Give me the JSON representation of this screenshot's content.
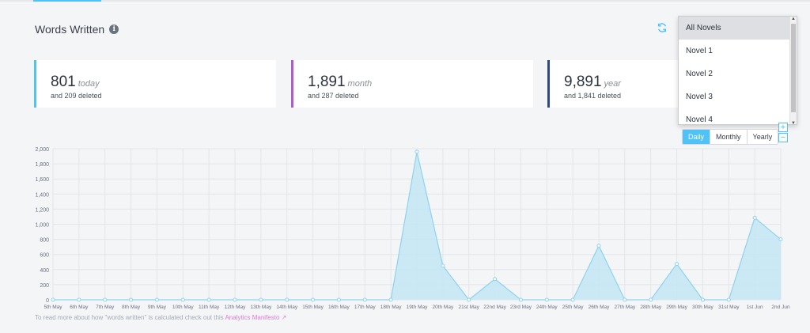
{
  "section": {
    "title": "Words Written",
    "info_icon": "info-icon"
  },
  "toolbar": {
    "refresh_icon": "refresh-icon"
  },
  "stats": [
    {
      "value": "801",
      "unit": "today",
      "deleted": "and 209 deleted",
      "color": "#4fc3f7"
    },
    {
      "value": "1,891",
      "unit": "month",
      "deleted": "and 287 deleted",
      "color": "#b15bc8"
    },
    {
      "value": "9,891",
      "unit": "year",
      "deleted": "and 1,841 deleted",
      "color": "#2c4a7e"
    }
  ],
  "dropdown": {
    "options": [
      "All Novels",
      "Novel 1",
      "Novel 2",
      "Novel 3",
      "Novel 4"
    ],
    "selected": "All Novels"
  },
  "zoom": {
    "plus": "+",
    "minus": "−"
  },
  "range_buttons": [
    "Daily",
    "Monthly",
    "Yearly"
  ],
  "range_selected": "Daily",
  "footer": {
    "text": "To read more about how \"words written\" is calculated check out this ",
    "link": "Analytics Manifesto ↗"
  },
  "colors": {
    "accent": "#4fc3f7",
    "area_fill": "#c3e6f5",
    "area_line": "#8fd2ee"
  },
  "chart_data": {
    "type": "area",
    "categories": [
      "5th May",
      "6th May",
      "7th May",
      "8th May",
      "9th May",
      "10th May",
      "11th May",
      "12th May",
      "13th May",
      "14th May",
      "15th May",
      "16th May",
      "17th May",
      "18th May",
      "19th May",
      "20th May",
      "21st May",
      "22nd May",
      "23rd May",
      "24th May",
      "25th May",
      "26th May",
      "27th May",
      "28th May",
      "29th May",
      "30th May",
      "31st May",
      "1st Jun",
      "2nd Jun"
    ],
    "values": [
      0,
      0,
      0,
      0,
      0,
      0,
      0,
      0,
      0,
      0,
      0,
      0,
      0,
      0,
      1960,
      450,
      0,
      275,
      0,
      0,
      0,
      715,
      0,
      0,
      475,
      0,
      0,
      1085,
      800
    ],
    "ylim": [
      0,
      2000
    ],
    "yticks": [
      0,
      200,
      400,
      600,
      800,
      1000,
      1200,
      1400,
      1600,
      1800,
      2000
    ],
    "ytick_labels": [
      "0",
      "200",
      "400",
      "600",
      "800",
      "1,000",
      "1,200",
      "1,400",
      "1,600",
      "1,800",
      "2,000"
    ],
    "grid": true
  }
}
